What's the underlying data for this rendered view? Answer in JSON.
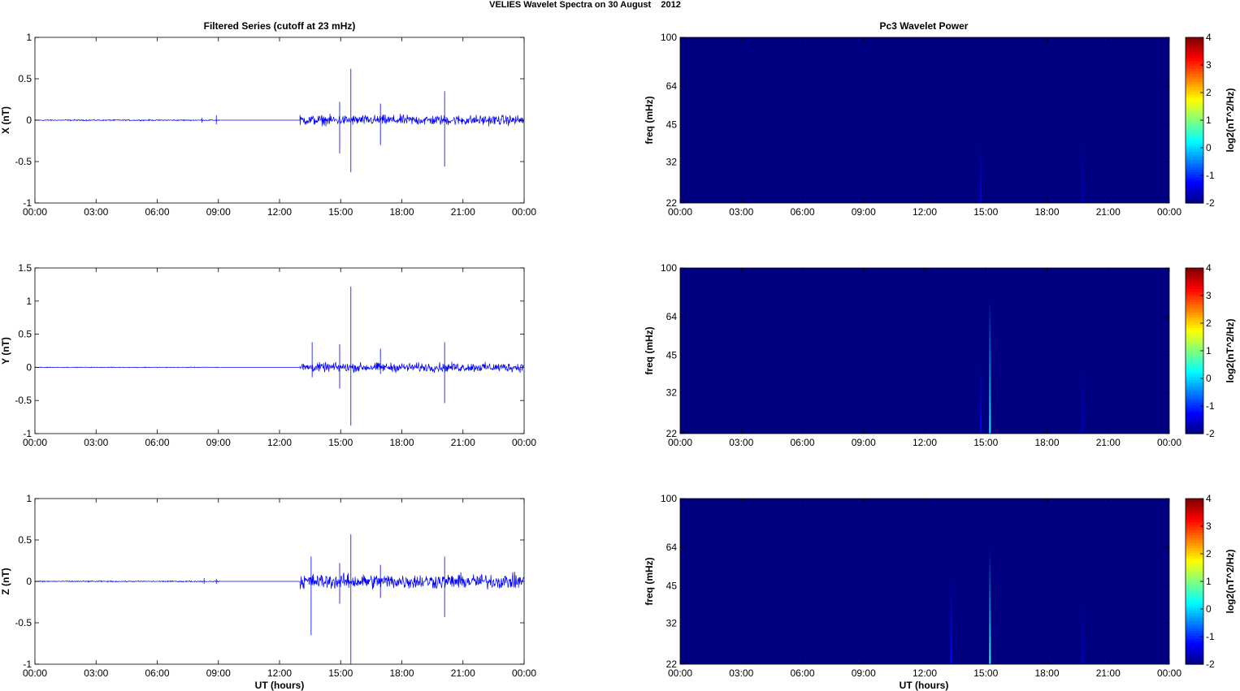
{
  "figure": {
    "title": "VELIES Wavelet Spectra on 30 August    2012",
    "left_column_title": "Filtered Series (cutoff at 23 mHz)",
    "right_column_title": "Pc3 Wavelet Power",
    "x_axis_label": "UT (hours)"
  },
  "chart_data": [
    {
      "type": "line",
      "title": "Filtered Series (cutoff at 23 mHz)",
      "ylabel": "X (nT)",
      "xlim": [
        0,
        24
      ],
      "ylim": [
        -1,
        1
      ],
      "x_ticks": [
        "00:00",
        "03:00",
        "06:00",
        "09:00",
        "12:00",
        "15:00",
        "18:00",
        "21:00",
        "00:00"
      ],
      "y_ticks": [
        "1",
        "0.5",
        "0",
        "-0.5",
        "-1"
      ],
      "y_tick_values": [
        1,
        0.5,
        0,
        -0.5,
        -1
      ],
      "series_color": "#0000ff",
      "segments": [
        {
          "x_start": 0.0,
          "x_end": 9.1,
          "amplitude": 0.01
        },
        {
          "x_start": 9.1,
          "x_end": 13.0,
          "amplitude": 0.0
        },
        {
          "x_start": 13.0,
          "x_end": 24.0,
          "amplitude": 0.09
        }
      ],
      "spikes": [
        {
          "x": 8.2,
          "y_max": 0.03,
          "y_min": -0.03
        },
        {
          "x": 8.9,
          "y_max": 0.06,
          "y_min": -0.05
        },
        {
          "x": 14.95,
          "y_max": 0.22,
          "y_min": -0.4
        },
        {
          "x": 15.5,
          "y_max": 0.62,
          "y_min": -0.63
        },
        {
          "x": 16.95,
          "y_max": 0.2,
          "y_min": -0.3
        },
        {
          "x": 20.1,
          "y_max": 0.35,
          "y_min": -0.56
        }
      ],
      "grid": false
    },
    {
      "type": "heatmap",
      "title": "Pc3 Wavelet Power",
      "ylabel": "freq (mHz)",
      "xlim": [
        0,
        24
      ],
      "ylim": [
        22,
        100
      ],
      "y_scale": "log",
      "x_ticks": [
        "00:00",
        "03:00",
        "06:00",
        "09:00",
        "12:00",
        "15:00",
        "18:00",
        "21:00",
        "00:00"
      ],
      "y_ticks": [
        "100",
        "64",
        "45",
        "32",
        "22"
      ],
      "y_tick_values": [
        100,
        64,
        45,
        32,
        22
      ],
      "colorbar_label": "log2(nT^2/Hz)",
      "colorbar_range": [
        -2,
        4
      ],
      "colorbar_ticks": [
        "4",
        "3",
        "2",
        "1",
        "0",
        "-1",
        "-2"
      ],
      "colorbar_tick_values": [
        4,
        3,
        2,
        1,
        0,
        -1,
        -2
      ],
      "background_value": -2,
      "streaks": [
        {
          "x": 14.75,
          "f_top": 38,
          "value": -1.4
        },
        {
          "x": 19.75,
          "f_top": 40,
          "value": -1.6
        }
      ]
    },
    {
      "type": "line",
      "title": "",
      "ylabel": "Y (nT)",
      "xlim": [
        0,
        24
      ],
      "ylim": [
        -1,
        1.5
      ],
      "x_ticks": [
        "00:00",
        "03:00",
        "06:00",
        "09:00",
        "12:00",
        "15:00",
        "18:00",
        "21:00",
        "00:00"
      ],
      "y_ticks": [
        "1.5",
        "1",
        "0.5",
        "0",
        "-0.5",
        "-1"
      ],
      "y_tick_values": [
        1.5,
        1,
        0.5,
        0,
        -0.5,
        -1
      ],
      "series_color": "#0000ff",
      "segments": [
        {
          "x_start": 0.0,
          "x_end": 9.1,
          "amplitude": 0.008
        },
        {
          "x_start": 9.1,
          "x_end": 13.0,
          "amplitude": 0.0
        },
        {
          "x_start": 13.0,
          "x_end": 24.0,
          "amplitude": 0.1
        }
      ],
      "spikes": [
        {
          "x": 13.6,
          "y_max": 0.38,
          "y_min": -0.15
        },
        {
          "x": 14.95,
          "y_max": 0.35,
          "y_min": -0.32
        },
        {
          "x": 15.5,
          "y_max": 1.22,
          "y_min": -0.88
        },
        {
          "x": 16.95,
          "y_max": 0.28,
          "y_min": -0.1
        },
        {
          "x": 20.1,
          "y_max": 0.38,
          "y_min": -0.54
        }
      ],
      "grid": false
    },
    {
      "type": "heatmap",
      "title": "",
      "ylabel": "freq (mHz)",
      "xlim": [
        0,
        24
      ],
      "ylim": [
        22,
        100
      ],
      "y_scale": "log",
      "x_ticks": [
        "00:00",
        "03:00",
        "06:00",
        "09:00",
        "12:00",
        "15:00",
        "18:00",
        "21:00",
        "00:00"
      ],
      "y_ticks": [
        "100",
        "64",
        "45",
        "32",
        "22"
      ],
      "y_tick_values": [
        100,
        64,
        45,
        32,
        22
      ],
      "colorbar_label": "log2(nT^2/Hz)",
      "colorbar_range": [
        -2,
        4
      ],
      "colorbar_ticks": [
        "4",
        "3",
        "2",
        "1",
        "0",
        "-1",
        "-2"
      ],
      "colorbar_tick_values": [
        4,
        3,
        2,
        1,
        0,
        -1,
        -2
      ],
      "background_value": -2,
      "streaks": [
        {
          "x": 14.75,
          "f_top": 42,
          "value": -1.3
        },
        {
          "x": 15.2,
          "f_top": 75,
          "value": 0.2
        },
        {
          "x": 19.75,
          "f_top": 40,
          "value": -1.5
        }
      ]
    },
    {
      "type": "line",
      "title": "",
      "ylabel": "Z (nT)",
      "xlim": [
        0,
        24
      ],
      "ylim": [
        -1,
        1
      ],
      "x_ticks": [
        "00:00",
        "03:00",
        "06:00",
        "09:00",
        "12:00",
        "15:00",
        "18:00",
        "21:00",
        "00:00"
      ],
      "y_ticks": [
        "1",
        "0.5",
        "0",
        "-0.5",
        "-1"
      ],
      "y_tick_values": [
        1,
        0.5,
        0,
        -0.5,
        -1
      ],
      "series_color": "#0000ff",
      "segments": [
        {
          "x_start": 0.0,
          "x_end": 9.1,
          "amplitude": 0.01
        },
        {
          "x_start": 9.1,
          "x_end": 13.0,
          "amplitude": 0.0
        },
        {
          "x_start": 13.0,
          "x_end": 24.0,
          "amplitude": 0.13
        }
      ],
      "spikes": [
        {
          "x": 8.3,
          "y_max": 0.04,
          "y_min": -0.03
        },
        {
          "x": 8.9,
          "y_max": 0.03,
          "y_min": -0.03
        },
        {
          "x": 13.55,
          "y_max": 0.3,
          "y_min": -0.65
        },
        {
          "x": 14.95,
          "y_max": 0.22,
          "y_min": -0.27
        },
        {
          "x": 15.5,
          "y_max": 0.57,
          "y_min": -1.0
        },
        {
          "x": 16.95,
          "y_max": 0.2,
          "y_min": -0.2
        },
        {
          "x": 20.1,
          "y_max": 0.3,
          "y_min": -0.43
        }
      ],
      "grid": false
    },
    {
      "type": "heatmap",
      "title": "",
      "ylabel": "freq (mHz)",
      "xlim": [
        0,
        24
      ],
      "ylim": [
        22,
        100
      ],
      "y_scale": "log",
      "x_ticks": [
        "00:00",
        "03:00",
        "06:00",
        "09:00",
        "12:00",
        "15:00",
        "18:00",
        "21:00",
        "00:00"
      ],
      "y_ticks": [
        "100",
        "64",
        "45",
        "32",
        "22"
      ],
      "y_tick_values": [
        100,
        64,
        45,
        32,
        22
      ],
      "colorbar_label": "log2(nT^2/Hz)",
      "colorbar_range": [
        -2,
        4
      ],
      "colorbar_ticks": [
        "4",
        "3",
        "2",
        "1",
        "0",
        "-1",
        "-2"
      ],
      "colorbar_tick_values": [
        4,
        3,
        2,
        1,
        0,
        -1,
        -2
      ],
      "background_value": -2,
      "streaks": [
        {
          "x": 13.3,
          "f_top": 48,
          "value": -1.2
        },
        {
          "x": 15.2,
          "f_top": 62,
          "value": 0.4
        },
        {
          "x": 19.75,
          "f_top": 38,
          "value": -1.5
        }
      ],
      "xlabel": "UT (hours)"
    }
  ]
}
